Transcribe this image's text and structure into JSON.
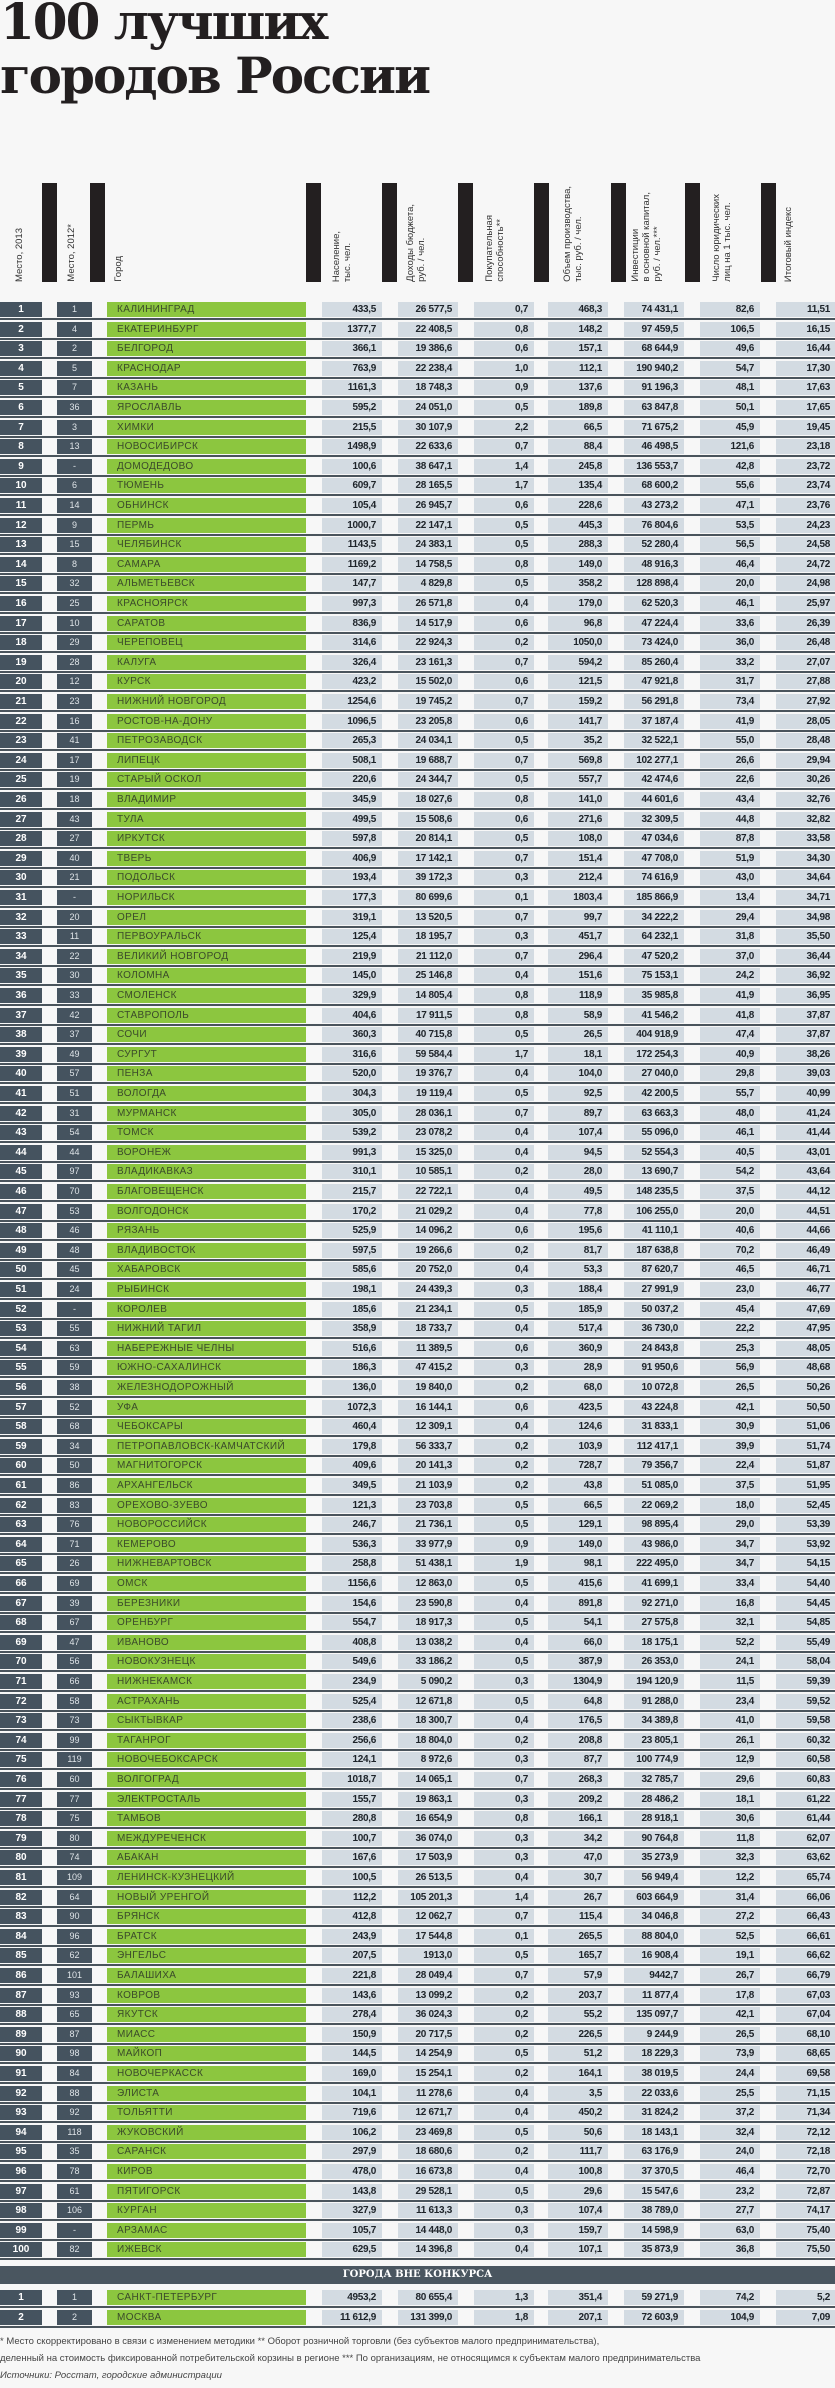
{
  "title": {
    "line1": "100 лучших",
    "line2": "городов России"
  },
  "columns": [
    "Место, 2013",
    "Место, 2012*",
    "Город",
    "Население,\nтыс. чел.",
    "Доходы бюджета,\nруб. / чел.",
    "Покупательная\nспособность**",
    "Объем производства,\nтыс. руб. / чел.",
    "Инвестиции\nв основной капитал,\nруб. / чел.***",
    "Число юридических\nлиц на 1 тыс. чел.",
    "Итоговый индекс"
  ],
  "colors": {
    "rank_box": "#45535f",
    "city_cell": "#8cc63f",
    "value_cell": "#d3dbe2"
  },
  "rows": [
    [
      "1",
      "1",
      "КАЛИНИНГРАД",
      "433,5",
      "26 577,5",
      "0,7",
      "468,3",
      "74 431,1",
      "82,6",
      "11,51"
    ],
    [
      "2",
      "4",
      "ЕКАТЕРИНБУРГ",
      "1377,7",
      "22 408,5",
      "0,8",
      "148,2",
      "97 459,5",
      "106,5",
      "16,15"
    ],
    [
      "3",
      "2",
      "БЕЛГОРОД",
      "366,1",
      "19 386,6",
      "0,6",
      "157,1",
      "68 644,9",
      "49,6",
      "16,44"
    ],
    [
      "4",
      "5",
      "КРАСНОДАР",
      "763,9",
      "22 238,4",
      "1,0",
      "112,1",
      "190 940,2",
      "54,7",
      "17,30"
    ],
    [
      "5",
      "7",
      "КАЗАНЬ",
      "1161,3",
      "18 748,3",
      "0,9",
      "137,6",
      "91 196,3",
      "48,1",
      "17,63"
    ],
    [
      "6",
      "36",
      "ЯРОСЛАВЛЬ",
      "595,2",
      "24 051,0",
      "0,5",
      "189,8",
      "63 847,8",
      "50,1",
      "17,65"
    ],
    [
      "7",
      "3",
      "ХИМКИ",
      "215,5",
      "30 107,9",
      "2,2",
      "66,5",
      "71 675,2",
      "45,9",
      "19,45"
    ],
    [
      "8",
      "13",
      "НОВОСИБИРСК",
      "1498,9",
      "22 633,6",
      "0,7",
      "88,4",
      "46 498,5",
      "121,6",
      "23,18"
    ],
    [
      "9",
      "-",
      "ДОМОДЕДОВО",
      "100,6",
      "38 647,1",
      "1,4",
      "245,8",
      "136 553,7",
      "42,8",
      "23,72"
    ],
    [
      "10",
      "6",
      "ТЮМЕНЬ",
      "609,7",
      "28 165,5",
      "1,7",
      "135,4",
      "68 600,2",
      "55,6",
      "23,74"
    ],
    [
      "11",
      "14",
      "ОБНИНСК",
      "105,4",
      "26 945,7",
      "0,6",
      "228,6",
      "43 273,2",
      "47,1",
      "23,76"
    ],
    [
      "12",
      "9",
      "ПЕРМЬ",
      "1000,7",
      "22 147,1",
      "0,5",
      "445,3",
      "76 804,6",
      "53,5",
      "24,23"
    ],
    [
      "13",
      "15",
      "ЧЕЛЯБИНСК",
      "1143,5",
      "24 383,1",
      "0,5",
      "288,3",
      "52 280,4",
      "56,5",
      "24,58"
    ],
    [
      "14",
      "8",
      "САМАРА",
      "1169,2",
      "14 758,5",
      "0,8",
      "149,0",
      "48 916,3",
      "46,4",
      "24,72"
    ],
    [
      "15",
      "32",
      "АЛЬМЕТЬЕВСК",
      "147,7",
      "4 829,8",
      "0,5",
      "358,2",
      "128 898,4",
      "20,0",
      "24,98"
    ],
    [
      "16",
      "25",
      "КРАСНОЯРСК",
      "997,3",
      "26 571,8",
      "0,4",
      "179,0",
      "62 520,3",
      "46,1",
      "25,97"
    ],
    [
      "17",
      "10",
      "САРАТОВ",
      "836,9",
      "14 517,9",
      "0,6",
      "96,8",
      "47 224,4",
      "33,6",
      "26,39"
    ],
    [
      "18",
      "29",
      "ЧЕРЕПОВЕЦ",
      "314,6",
      "22 924,3",
      "0,2",
      "1050,0",
      "73 424,0",
      "36,0",
      "26,48"
    ],
    [
      "19",
      "28",
      "КАЛУГА",
      "326,4",
      "23 161,3",
      "0,7",
      "594,2",
      "85 260,4",
      "33,2",
      "27,07"
    ],
    [
      "20",
      "12",
      "КУРСК",
      "423,2",
      "15 502,0",
      "0,6",
      "121,5",
      "47 921,8",
      "31,7",
      "27,88"
    ],
    [
      "21",
      "23",
      "НИЖНИЙ НОВГОРОД",
      "1254,6",
      "19 745,2",
      "0,7",
      "159,2",
      "56 291,8",
      "73,4",
      "27,92"
    ],
    [
      "22",
      "16",
      "РОСТОВ-НА-ДОНУ",
      "1096,5",
      "23 205,8",
      "0,6",
      "141,7",
      "37 187,4",
      "41,9",
      "28,05"
    ],
    [
      "23",
      "41",
      "ПЕТРОЗАВОДСК",
      "265,3",
      "24 034,1",
      "0,5",
      "35,2",
      "32 522,1",
      "55,0",
      "28,48"
    ],
    [
      "24",
      "17",
      "ЛИПЕЦК",
      "508,1",
      "19 688,7",
      "0,7",
      "569,8",
      "102 277,1",
      "26,6",
      "29,94"
    ],
    [
      "25",
      "19",
      "СТАРЫЙ ОСКОЛ",
      "220,6",
      "24 344,7",
      "0,5",
      "557,7",
      "42 474,6",
      "22,6",
      "30,26"
    ],
    [
      "26",
      "18",
      "ВЛАДИМИР",
      "345,9",
      "18 027,6",
      "0,8",
      "141,0",
      "44 601,6",
      "43,4",
      "32,76"
    ],
    [
      "27",
      "43",
      "ТУЛА",
      "499,5",
      "15 508,6",
      "0,6",
      "271,6",
      "32 309,5",
      "44,8",
      "32,82"
    ],
    [
      "28",
      "27",
      "ИРКУТСК",
      "597,8",
      "20 814,1",
      "0,5",
      "108,0",
      "47 034,6",
      "87,8",
      "33,58"
    ],
    [
      "29",
      "40",
      "ТВЕРЬ",
      "406,9",
      "17 142,1",
      "0,7",
      "151,4",
      "47 708,0",
      "51,9",
      "34,30"
    ],
    [
      "30",
      "21",
      "ПОДОЛЬСК",
      "193,4",
      "39 172,3",
      "0,3",
      "212,4",
      "74 616,9",
      "43,0",
      "34,64"
    ],
    [
      "31",
      "-",
      "НОРИЛЬСК",
      "177,3",
      "80 699,6",
      "0,1",
      "1803,4",
      "185 866,9",
      "13,4",
      "34,71"
    ],
    [
      "32",
      "20",
      "ОРЕЛ",
      "319,1",
      "13 520,5",
      "0,7",
      "99,7",
      "34 222,2",
      "29,4",
      "34,98"
    ],
    [
      "33",
      "11",
      "ПЕРВОУРАЛЬСК",
      "125,4",
      "18 195,7",
      "0,3",
      "451,7",
      "64 232,1",
      "31,8",
      "35,50"
    ],
    [
      "34",
      "22",
      "ВЕЛИКИЙ НОВГОРОД",
      "219,9",
      "21 112,0",
      "0,7",
      "296,4",
      "47 520,2",
      "37,0",
      "36,44"
    ],
    [
      "35",
      "30",
      "КОЛОМНА",
      "145,0",
      "25 146,8",
      "0,4",
      "151,6",
      "75 153,1",
      "24,2",
      "36,92"
    ],
    [
      "36",
      "33",
      "СМОЛЕНСК",
      "329,9",
      "14 805,4",
      "0,8",
      "118,9",
      "35 985,8",
      "41,9",
      "36,95"
    ],
    [
      "37",
      "42",
      "СТАВРОПОЛЬ",
      "404,6",
      "17 911,5",
      "0,8",
      "58,9",
      "41 546,2",
      "41,8",
      "37,87"
    ],
    [
      "38",
      "37",
      "СОЧИ",
      "360,3",
      "40 715,8",
      "0,5",
      "26,5",
      "404 918,9",
      "47,4",
      "37,87"
    ],
    [
      "39",
      "49",
      "СУРГУТ",
      "316,6",
      "59 584,4",
      "1,7",
      "18,1",
      "172 254,3",
      "40,9",
      "38,26"
    ],
    [
      "40",
      "57",
      "ПЕНЗА",
      "520,0",
      "19 376,7",
      "0,4",
      "104,0",
      "27 040,0",
      "29,8",
      "39,03"
    ],
    [
      "41",
      "51",
      "ВОЛОГДА",
      "304,3",
      "19 119,4",
      "0,5",
      "92,5",
      "42 200,5",
      "55,7",
      "40,99"
    ],
    [
      "42",
      "31",
      "МУРМАНСК",
      "305,0",
      "28 036,1",
      "0,7",
      "89,7",
      "63 663,3",
      "48,0",
      "41,24"
    ],
    [
      "43",
      "54",
      "ТОМСК",
      "539,2",
      "23 078,2",
      "0,4",
      "107,4",
      "55 096,0",
      "46,1",
      "41,44"
    ],
    [
      "44",
      "44",
      "ВОРОНЕЖ",
      "991,3",
      "15 325,0",
      "0,4",
      "94,5",
      "52 554,3",
      "40,5",
      "43,01"
    ],
    [
      "45",
      "97",
      "ВЛАДИКАВКАЗ",
      "310,1",
      "10 585,1",
      "0,2",
      "28,0",
      "13 690,7",
      "54,2",
      "43,64"
    ],
    [
      "46",
      "70",
      "БЛАГОВЕЩЕНСК",
      "215,7",
      "22 722,1",
      "0,4",
      "49,5",
      "148 235,5",
      "37,5",
      "44,12"
    ],
    [
      "47",
      "53",
      "ВОЛГОДОНСК",
      "170,2",
      "21 029,2",
      "0,4",
      "77,8",
      "106 255,0",
      "20,0",
      "44,51"
    ],
    [
      "48",
      "46",
      "РЯЗАНЬ",
      "525,9",
      "14 096,2",
      "0,6",
      "195,6",
      "41 110,1",
      "40,6",
      "44,66"
    ],
    [
      "49",
      "48",
      "ВЛАДИВОСТОК",
      "597,5",
      "19 266,6",
      "0,2",
      "81,7",
      "187 638,8",
      "70,2",
      "46,49"
    ],
    [
      "50",
      "45",
      "ХАБАРОВСК",
      "585,6",
      "20 752,0",
      "0,4",
      "53,3",
      "87 620,7",
      "46,5",
      "46,71"
    ],
    [
      "51",
      "24",
      "РЫБИНСК",
      "198,1",
      "24 439,3",
      "0,3",
      "188,4",
      "27 991,9",
      "23,0",
      "46,77"
    ],
    [
      "52",
      "-",
      "КОРОЛЕВ",
      "185,6",
      "21 234,1",
      "0,5",
      "185,9",
      "50 037,2",
      "45,4",
      "47,69"
    ],
    [
      "53",
      "55",
      "НИЖНИЙ ТАГИЛ",
      "358,9",
      "18 733,7",
      "0,4",
      "517,4",
      "36 730,0",
      "22,2",
      "47,95"
    ],
    [
      "54",
      "63",
      "НАБЕРЕЖНЫЕ ЧЕЛНЫ",
      "516,6",
      "11 389,5",
      "0,6",
      "360,9",
      "24 843,8",
      "25,3",
      "48,05"
    ],
    [
      "55",
      "59",
      "ЮЖНО-САХАЛИНСК",
      "186,3",
      "47 415,2",
      "0,3",
      "28,9",
      "91 950,6",
      "56,9",
      "48,68"
    ],
    [
      "56",
      "38",
      "ЖЕЛЕЗНОДОРОЖНЫЙ",
      "136,0",
      "19 840,0",
      "0,2",
      "68,0",
      "10 072,8",
      "26,5",
      "50,26"
    ],
    [
      "57",
      "52",
      "УФА",
      "1072,3",
      "16 144,1",
      "0,6",
      "423,5",
      "43 224,8",
      "42,1",
      "50,50"
    ],
    [
      "58",
      "68",
      "ЧЕБОКСАРЫ",
      "460,4",
      "12 309,1",
      "0,4",
      "124,6",
      "31 833,1",
      "30,9",
      "51,06"
    ],
    [
      "59",
      "34",
      "ПЕТРОПАВЛОВСК-КАМЧАТСКИЙ",
      "179,8",
      "56 333,7",
      "0,2",
      "103,9",
      "112 417,1",
      "39,9",
      "51,74"
    ],
    [
      "60",
      "50",
      "МАГНИТОГОРСК",
      "409,6",
      "20 141,3",
      "0,2",
      "728,7",
      "79 356,7",
      "22,4",
      "51,87"
    ],
    [
      "61",
      "86",
      "АРХАНГЕЛЬСК",
      "349,5",
      "21 103,9",
      "0,2",
      "43,8",
      "51 085,0",
      "37,5",
      "51,95"
    ],
    [
      "62",
      "83",
      "ОРЕХОВО-ЗУЕВО",
      "121,3",
      "23 703,8",
      "0,5",
      "66,5",
      "22 069,2",
      "18,0",
      "52,45"
    ],
    [
      "63",
      "76",
      "НОВОРОССИЙСК",
      "246,7",
      "21 736,1",
      "0,5",
      "129,1",
      "98 895,4",
      "29,0",
      "53,39"
    ],
    [
      "64",
      "71",
      "КЕМЕРОВО",
      "536,3",
      "33 977,9",
      "0,9",
      "149,0",
      "43 986,0",
      "34,7",
      "53,92"
    ],
    [
      "65",
      "26",
      "НИЖНЕВАРТОВСК",
      "258,8",
      "51 438,1",
      "1,9",
      "98,1",
      "222 495,0",
      "34,7",
      "54,15"
    ],
    [
      "66",
      "69",
      "ОМСК",
      "1156,6",
      "12 863,0",
      "0,5",
      "415,6",
      "41 699,1",
      "33,4",
      "54,40"
    ],
    [
      "67",
      "39",
      "БЕРЕЗНИКИ",
      "154,6",
      "23 590,8",
      "0,4",
      "891,8",
      "92 271,0",
      "16,8",
      "54,45"
    ],
    [
      "68",
      "67",
      "ОРЕНБУРГ",
      "554,7",
      "18 917,3",
      "0,5",
      "54,1",
      "27 575,8",
      "32,1",
      "54,85"
    ],
    [
      "69",
      "47",
      "ИВАНОВО",
      "408,8",
      "13 038,2",
      "0,4",
      "66,0",
      "18 175,1",
      "52,2",
      "55,49"
    ],
    [
      "70",
      "56",
      "НОВОКУЗНЕЦК",
      "549,6",
      "33 186,2",
      "0,5",
      "387,9",
      "26 353,0",
      "24,1",
      "58,04"
    ],
    [
      "71",
      "66",
      "НИЖНЕКАМСК",
      "234,9",
      "5 090,2",
      "0,3",
      "1304,9",
      "194 120,9",
      "11,5",
      "59,39"
    ],
    [
      "72",
      "58",
      "АСТРАХАНЬ",
      "525,4",
      "12 671,8",
      "0,5",
      "64,8",
      "91 288,0",
      "23,4",
      "59,52"
    ],
    [
      "73",
      "73",
      "СЫКТЫВКАР",
      "238,6",
      "18 300,7",
      "0,4",
      "176,5",
      "34 389,8",
      "41,0",
      "59,58"
    ],
    [
      "74",
      "99",
      "ТАГАНРОГ",
      "256,6",
      "18 804,0",
      "0,2",
      "208,8",
      "23 805,1",
      "26,1",
      "60,32"
    ],
    [
      "75",
      "119",
      "НОВОЧЕБОКСАРСК",
      "124,1",
      "8 972,6",
      "0,3",
      "87,7",
      "100 774,9",
      "12,9",
      "60,58"
    ],
    [
      "76",
      "60",
      "ВОЛГОГРАД",
      "1018,7",
      "14 065,1",
      "0,7",
      "268,3",
      "32 785,7",
      "29,6",
      "60,83"
    ],
    [
      "77",
      "77",
      "ЭЛЕКТРОСТАЛЬ",
      "155,7",
      "19 863,1",
      "0,3",
      "209,2",
      "28 486,2",
      "18,1",
      "61,22"
    ],
    [
      "78",
      "75",
      "ТАМБОВ",
      "280,8",
      "16 654,9",
      "0,8",
      "166,1",
      "28 918,1",
      "30,6",
      "61,44"
    ],
    [
      "79",
      "80",
      "МЕЖДУРЕЧЕНСК",
      "100,7",
      "36 074,0",
      "0,3",
      "34,2",
      "90 764,8",
      "11,8",
      "62,07"
    ],
    [
      "80",
      "74",
      "АБАКАН",
      "167,6",
      "17 503,9",
      "0,3",
      "47,0",
      "35 273,9",
      "32,3",
      "63,62"
    ],
    [
      "81",
      "109",
      "ЛЕНИНСК-КУЗНЕЦКИЙ",
      "100,5",
      "26 513,5",
      "0,4",
      "30,7",
      "56 949,4",
      "12,2",
      "65,74"
    ],
    [
      "82",
      "64",
      "НОВЫЙ УРЕНГОЙ",
      "112,2",
      "105 201,3",
      "1,4",
      "26,7",
      "603 664,9",
      "31,4",
      "66,06"
    ],
    [
      "83",
      "90",
      "БРЯНСК",
      "412,8",
      "12 062,7",
      "0,7",
      "115,4",
      "34 046,8",
      "27,2",
      "66,43"
    ],
    [
      "84",
      "96",
      "БРАТСК",
      "243,9",
      "17 544,8",
      "0,1",
      "265,5",
      "88 804,0",
      "52,5",
      "66,61"
    ],
    [
      "85",
      "62",
      "ЭНГЕЛЬС",
      "207,5",
      "1913,0",
      "0,5",
      "165,7",
      "16 908,4",
      "19,1",
      "66,62"
    ],
    [
      "86",
      "101",
      "БАЛАШИХА",
      "221,8",
      "28 049,4",
      "0,7",
      "57,9",
      "9442,7",
      "26,7",
      "66,79"
    ],
    [
      "87",
      "93",
      "КОВРОВ",
      "143,6",
      "13 099,2",
      "0,2",
      "203,7",
      "11 877,4",
      "17,8",
      "67,03"
    ],
    [
      "88",
      "65",
      "ЯКУТСК",
      "278,4",
      "36 024,3",
      "0,2",
      "55,2",
      "135 097,7",
      "42,1",
      "67,04"
    ],
    [
      "89",
      "87",
      "МИАСС",
      "150,9",
      "20 717,5",
      "0,2",
      "226,5",
      "9 244,9",
      "26,5",
      "68,10"
    ],
    [
      "90",
      "98",
      "МАЙКОП",
      "144,5",
      "14 254,9",
      "0,5",
      "51,2",
      "18 229,3",
      "73,9",
      "68,65"
    ],
    [
      "91",
      "84",
      "НОВОЧЕРКАССК",
      "169,0",
      "15 254,1",
      "0,2",
      "164,1",
      "38 019,5",
      "24,4",
      "69,58"
    ],
    [
      "92",
      "88",
      "ЭЛИСТА",
      "104,1",
      "11 278,6",
      "0,4",
      "3,5",
      "22 033,6",
      "25,5",
      "71,15"
    ],
    [
      "93",
      "92",
      "ТОЛЬЯТТИ",
      "719,6",
      "12 671,7",
      "0,4",
      "450,2",
      "31 824,2",
      "37,2",
      "71,34"
    ],
    [
      "94",
      "118",
      "ЖУКОВСКИЙ",
      "106,2",
      "23 469,8",
      "0,5",
      "50,6",
      "18 143,1",
      "32,4",
      "72,12"
    ],
    [
      "95",
      "35",
      "САРАНСК",
      "297,9",
      "18 680,6",
      "0,2",
      "111,7",
      "63 176,9",
      "24,0",
      "72,18"
    ],
    [
      "96",
      "78",
      "КИРОВ",
      "478,0",
      "16 673,8",
      "0,4",
      "100,8",
      "37 370,5",
      "46,4",
      "72,70"
    ],
    [
      "97",
      "61",
      "ПЯТИГОРСК",
      "143,8",
      "29 528,1",
      "0,5",
      "29,6",
      "15 547,6",
      "23,2",
      "72,87"
    ],
    [
      "98",
      "106",
      "КУРГАН",
      "327,9",
      "11 613,3",
      "0,3",
      "107,4",
      "38 789,0",
      "27,7",
      "74,17"
    ],
    [
      "99",
      "-",
      "АРЗАМАС",
      "105,7",
      "14 448,0",
      "0,3",
      "159,7",
      "14 598,9",
      "63,0",
      "75,40"
    ],
    [
      "100",
      "82",
      "ИЖЕВСК",
      "629,5",
      "14 396,8",
      "0,4",
      "107,1",
      "35 873,9",
      "36,8",
      "75,50"
    ]
  ],
  "out_of_competition": {
    "label": "ГОРОДА ВНЕ КОНКУРСА",
    "rows": [
      [
        "1",
        "1",
        "САНКТ-ПЕТЕРБУРГ",
        "4953,2",
        "80 655,4",
        "1,3",
        "351,4",
        "59 271,9",
        "74,2",
        "5,2"
      ],
      [
        "2",
        "2",
        "МОСКВА",
        "11 612,9",
        "131 399,0",
        "1,8",
        "207,1",
        "72 603,9",
        "104,9",
        "7,09"
      ]
    ]
  },
  "footnotes": {
    "line1": "* Место скорректировано в связи с изменением методики   ** Оборот розничной торговли (без субъектов малого предпринимательства),",
    "line2": "деленный на стоимость фиксированной потребительской корзины в регионе   *** По организациям, не относящимся к субъектам малого предпринимательства",
    "sources": "Источники: Росстат, городские администрации"
  }
}
